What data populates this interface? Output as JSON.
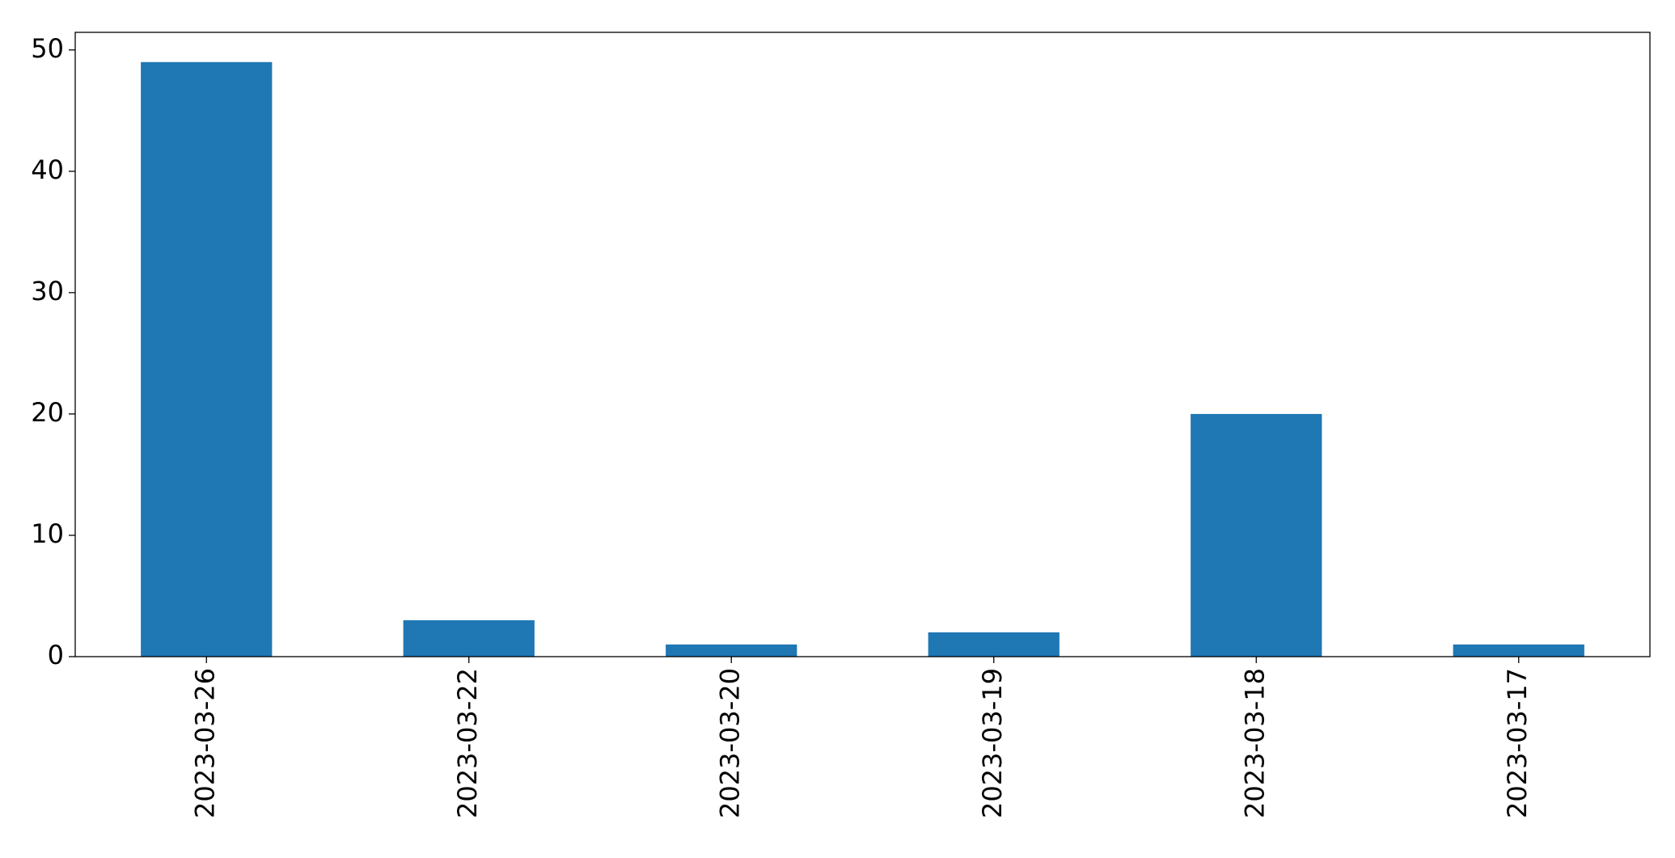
{
  "chart_data": {
    "type": "bar",
    "categories": [
      "2023-03-26",
      "2023-03-22",
      "2023-03-20",
      "2023-03-19",
      "2023-03-18",
      "2023-03-17"
    ],
    "values": [
      49,
      3,
      1,
      2,
      20,
      1
    ],
    "color": "#1f77b4",
    "ylim": [
      0,
      51.45
    ],
    "yticks": [
      0,
      10,
      20,
      30,
      40,
      50
    ],
    "grid": false
  }
}
